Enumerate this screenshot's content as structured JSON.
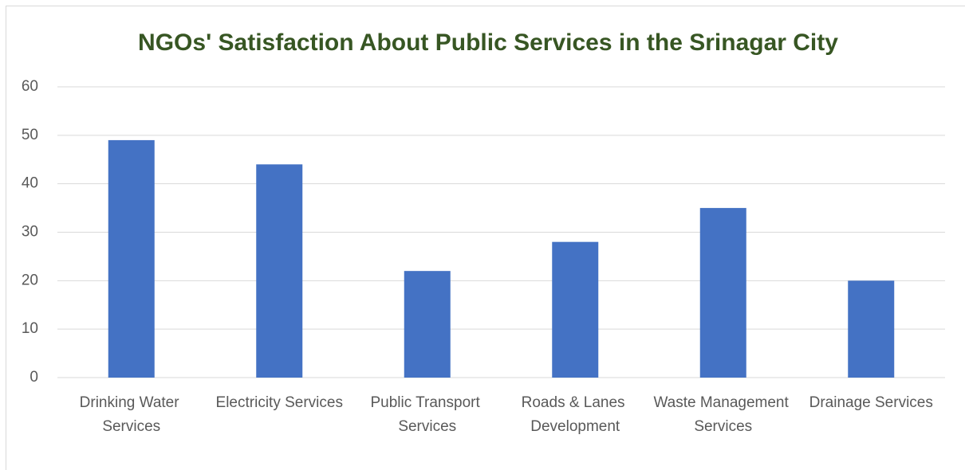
{
  "chart_data": {
    "type": "bar",
    "title": "NGOs' Satisfaction About Public Services in the Srinagar City",
    "categories": [
      "Drinking Water Services",
      "Electricity Services",
      "Public Transport Services",
      "Roads & Lanes Development",
      "Waste Management Services",
      "Drainage Services"
    ],
    "values": [
      49,
      44,
      22,
      28,
      35,
      20
    ],
    "color": "#4472c4",
    "ylim": [
      0,
      60
    ],
    "yticks": [
      0,
      10,
      20,
      30,
      40,
      50,
      60
    ],
    "grid": true
  }
}
